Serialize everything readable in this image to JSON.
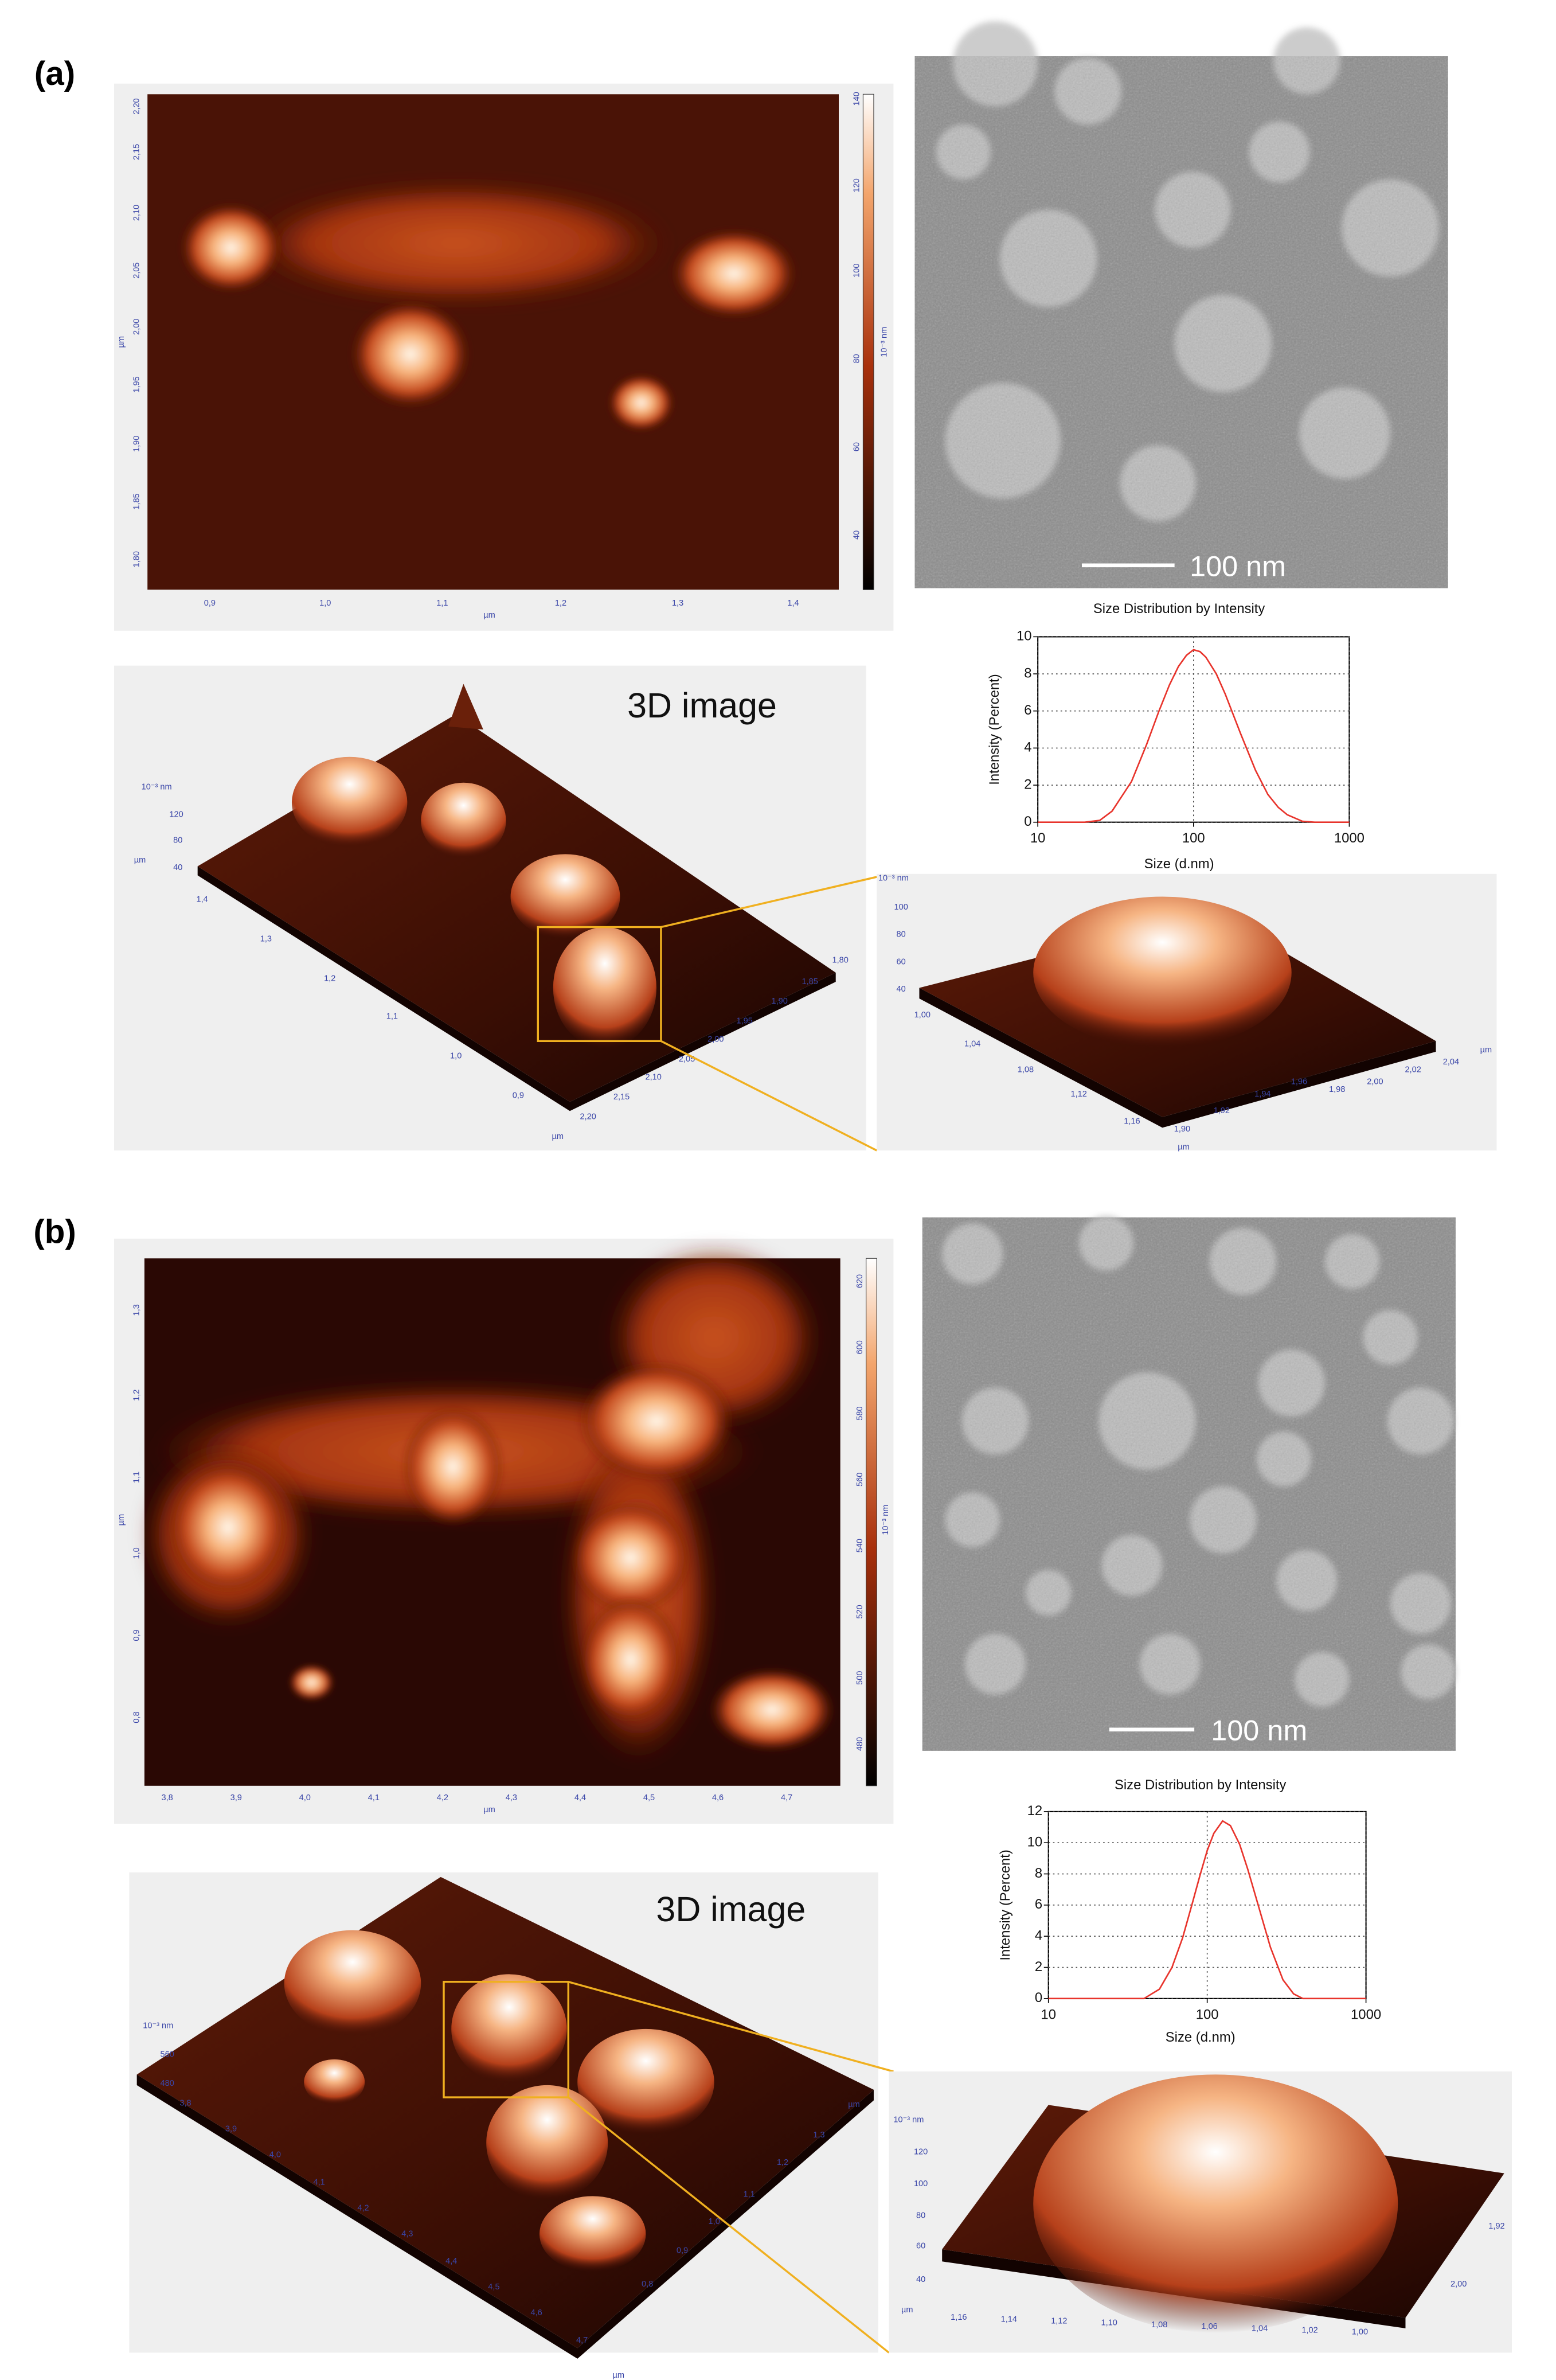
{
  "panels": [
    {
      "label": "(a)",
      "afm_2d": {
        "y_ticks": [
          "2,20",
          "2,15",
          "2,10",
          "2,05",
          "2,00",
          "1,95",
          "1,90",
          "1,85",
          "1,80"
        ],
        "y_unit": "µm",
        "x_ticks": [
          "0,9",
          "1,0",
          "1,1",
          "1,2",
          "1,3",
          "1,4"
        ],
        "x_unit": "µm",
        "colorbar_ticks": [
          "140",
          "120",
          "100",
          "80",
          "60",
          "40"
        ],
        "colorbar_unit": "10⁻³ nm"
      },
      "tem": {
        "scale_bar": "100 nm"
      },
      "afm_3d": {
        "title": "3D image",
        "z_unit": "10⁻³ nm",
        "z_ticks": [
          "120",
          "80",
          "40"
        ],
        "z_axis_unit": "µm",
        "x_ticks": [
          "1,4",
          "1,3",
          "1,2",
          "1,1",
          "1,0",
          "0,9"
        ],
        "x_unit": "µm",
        "y_ticks": [
          "1,80",
          "1,85",
          "1,90",
          "1,95",
          "2,00",
          "2,05",
          "2,10",
          "2,15",
          "2,20"
        ]
      },
      "zoom": {
        "z_unit": "10⁻³ nm",
        "z_ticks": [
          "100",
          "80",
          "60",
          "40"
        ],
        "x_ticks": [
          "1,00",
          "1,04",
          "1,08",
          "1,12",
          "1,16"
        ],
        "x_unit": "µm",
        "y_ticks": [
          "1,90",
          "1,92",
          "1,94",
          "1,96",
          "1,98",
          "2,00",
          "2,02",
          "2,04"
        ],
        "y_unit": "µm"
      }
    },
    {
      "label": "(b)",
      "afm_2d": {
        "y_ticks": [
          "1,3",
          "1,2",
          "1,1",
          "1,0",
          "0,9",
          "0,8"
        ],
        "y_unit": "µm",
        "x_ticks": [
          "3,8",
          "3,9",
          "4,0",
          "4,1",
          "4,2",
          "4,3",
          "4,4",
          "4,5",
          "4,6",
          "4,7"
        ],
        "x_unit": "µm",
        "colorbar_ticks": [
          "620",
          "600",
          "580",
          "560",
          "540",
          "520",
          "500",
          "480"
        ],
        "colorbar_unit": "10⁻³ nm"
      },
      "tem": {
        "scale_bar": "100 nm"
      },
      "afm_3d": {
        "title": "3D image",
        "z_unit": "10⁻³ nm",
        "z_ticks": [
          "560",
          "480"
        ],
        "x_ticks": [
          "3,8",
          "3,9",
          "4,0",
          "4,1",
          "4,2",
          "4,3",
          "4,4",
          "4,5",
          "4,6",
          "4,7"
        ],
        "x_unit": "µm",
        "y_ticks": [
          "1,3",
          "1,2",
          "1,1",
          "1,0",
          "0,9",
          "0,8"
        ],
        "y_unit": "µm"
      },
      "zoom": {
        "z_unit": "10⁻³ nm",
        "z_ticks": [
          "120",
          "100",
          "80",
          "60",
          "40"
        ],
        "z_axis_unit": "µm",
        "x_ticks": [
          "1,16",
          "1,14",
          "1,12",
          "1,10",
          "1,08",
          "1,06",
          "1,04",
          "1,02",
          "1,00"
        ],
        "y_ticks": [
          "1,92",
          "2,00"
        ]
      }
    }
  ],
  "chart_data": [
    {
      "type": "line",
      "title": "Size Distribution by Intensity",
      "x_label": "Size (d.nm)",
      "y_label": "Intensity (Percent)",
      "x": [
        10,
        20,
        25,
        30,
        40,
        50,
        60,
        70,
        80,
        90,
        100,
        110,
        120,
        140,
        160,
        200,
        250,
        300,
        350,
        400,
        500,
        600,
        1000
      ],
      "values": [
        0,
        0,
        0.1,
        0.6,
        2.2,
        4.2,
        6,
        7.4,
        8.4,
        9,
        9.3,
        9.2,
        8.9,
        8,
        6.9,
        4.8,
        2.8,
        1.5,
        0.8,
        0.4,
        0.05,
        0,
        0
      ],
      "color": "#e8342c",
      "log_x": true,
      "grid": true,
      "xlim": [
        10,
        1000
      ],
      "xticks": [
        10,
        100,
        1000
      ],
      "ylim": [
        0,
        10
      ],
      "yticks": [
        0,
        2,
        4,
        6,
        8,
        10
      ]
    },
    {
      "type": "line",
      "title": "Size Distribution by Intensity",
      "x_label": "Size (d.nm)",
      "y_label": "Intensity (Percent)",
      "x": [
        10,
        40,
        50,
        60,
        70,
        80,
        90,
        100,
        110,
        125,
        140,
        160,
        180,
        200,
        250,
        300,
        350,
        400,
        1000
      ],
      "values": [
        0,
        0,
        0.6,
        2,
        3.9,
        6,
        7.9,
        9.5,
        10.6,
        11.4,
        11.1,
        9.9,
        8.3,
        6.7,
        3.3,
        1.2,
        0.3,
        0,
        0
      ],
      "color": "#e8342c",
      "log_x": true,
      "grid": true,
      "xlim": [
        10,
        1000
      ],
      "xticks": [
        10,
        100,
        1000
      ],
      "ylim": [
        0,
        12
      ],
      "yticks": [
        0,
        2,
        4,
        6,
        8,
        10,
        12
      ]
    }
  ]
}
